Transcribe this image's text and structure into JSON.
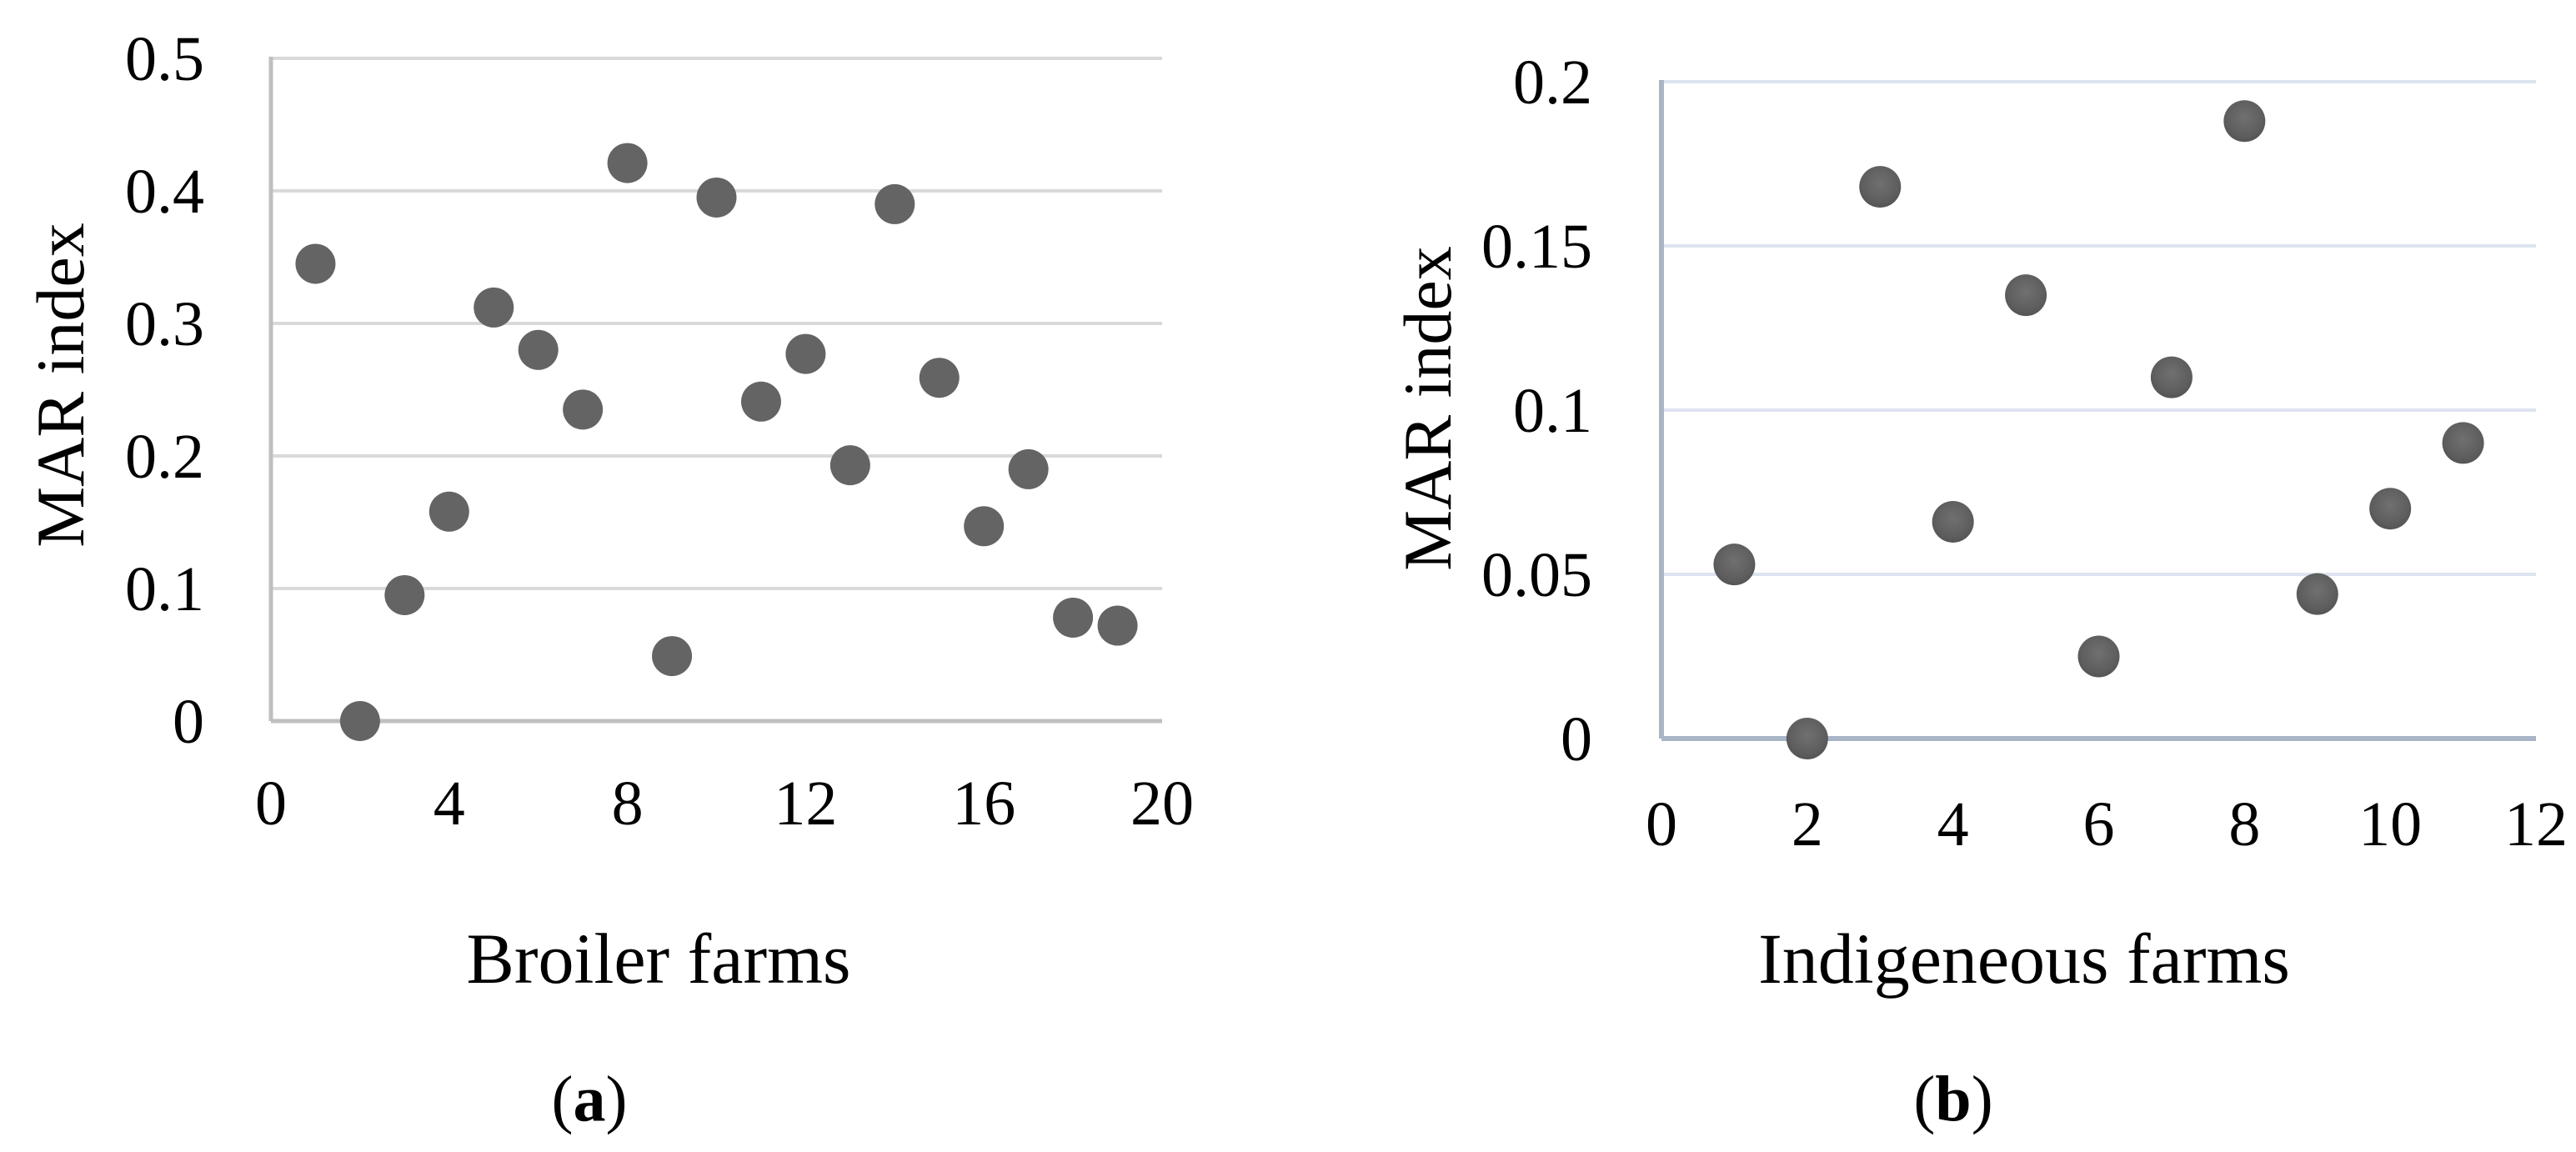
{
  "figure": {
    "background": "#ffffff",
    "panel_count": 2
  },
  "chart_data": [
    {
      "type": "scatter",
      "panel": "a",
      "caption": "(a)",
      "caption_parts": {
        "open": "(",
        "letter": "a",
        "close": ")"
      },
      "xlabel": "Broiler farms",
      "ylabel": "MAR index",
      "xlim": [
        0,
        20
      ],
      "ylim": [
        0,
        0.5
      ],
      "x_tick_labels": [
        "0",
        "4",
        "8",
        "12",
        "16",
        "20"
      ],
      "y_tick_labels": [
        "0.5",
        "0.4",
        "0.3",
        "0.2",
        "0.1",
        "0"
      ],
      "grid": "horizontal",
      "legend": "none",
      "marker": {
        "shape": "circle",
        "color": "#646464"
      },
      "grid_color": "#d9d9d9",
      "axis_color": "#bfbfbf",
      "x": [
        1,
        2,
        3,
        4,
        5,
        6,
        7,
        8,
        9,
        10,
        11,
        12,
        13,
        14,
        15,
        16,
        17,
        18,
        19
      ],
      "y": [
        0.345,
        0,
        0.095,
        0.158,
        0.312,
        0.28,
        0.235,
        0.421,
        0.049,
        0.395,
        0.241,
        0.277,
        0.193,
        0.39,
        0.259,
        0.147,
        0.19,
        0.078,
        0.072
      ]
    },
    {
      "type": "scatter",
      "panel": "b",
      "caption": "(b)",
      "caption_parts": {
        "open": "(",
        "letter": "b",
        "close": ")"
      },
      "xlabel": "Indigeneous farms",
      "ylabel": "MAR index",
      "xlim": [
        0,
        12
      ],
      "ylim": [
        0,
        0.2
      ],
      "x_tick_labels": [
        "0",
        "2",
        "4",
        "6",
        "8",
        "10",
        "12"
      ],
      "y_tick_labels": [
        "0.2",
        "0.15",
        "0.1",
        "0.05",
        "0"
      ],
      "grid": "horizontal",
      "legend": "none",
      "marker": {
        "shape": "circle",
        "color": "#5f5f5f",
        "effect": "bevel"
      },
      "grid_color": "#dde3ef",
      "axis_color": "#a9b4c7",
      "x": [
        1,
        2,
        3,
        4,
        5,
        6,
        7,
        8,
        9,
        10,
        11
      ],
      "y": [
        0.053,
        0,
        0.168,
        0.066,
        0.135,
        0.025,
        0.11,
        0.188,
        0.044,
        0.07,
        0.09
      ]
    }
  ],
  "colors": {
    "text": "#000000",
    "panel_a_grid": "#d9d9d9",
    "panel_a_axis": "#bfbfbf",
    "panel_b_grid": "#dde3ef",
    "panel_b_axis": "#a9b4c7",
    "marker_gray": "#646464"
  }
}
